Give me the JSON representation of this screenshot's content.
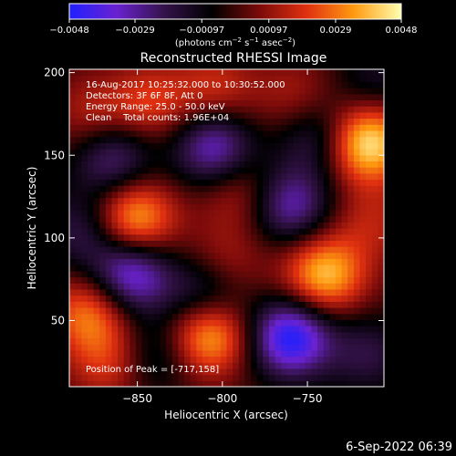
{
  "chart_data": {
    "type": "heatmap",
    "title": "Reconstructed RHESSI Image",
    "xlabel": "Heliocentric X (arcsec)",
    "ylabel": "Heliocentric Y (arcsec)",
    "x_ticks": [
      -850,
      -800,
      -750
    ],
    "x_tick_labels": [
      "−850",
      "−800",
      "−750"
    ],
    "y_ticks": [
      50,
      100,
      150,
      200
    ],
    "y_tick_labels": [
      "50",
      "100",
      "150",
      "200"
    ],
    "xlim": [
      -890,
      -705
    ],
    "ylim": [
      10,
      202
    ],
    "colorbar": {
      "range": [
        -0.0048,
        0.0048
      ],
      "ticks": [
        -0.0048,
        -0.0029,
        -0.00097,
        0.00097,
        0.0029,
        0.0048
      ],
      "tick_labels": [
        "−0.0048",
        "−0.0029",
        "−0.00097",
        "0.00097",
        "0.0029",
        "0.0048"
      ],
      "units_html": "(photons cm<tspan dy='-4' font-size='7'>−2</tspan><tspan dy='4'> s</tspan><tspan dy='-4' font-size='7'>−1</tspan><tspan dy='4'> asec</tspan><tspan dy='-4' font-size='7'>−2</tspan><tspan dy='4'>)</tspan>",
      "colors": [
        "#2020ff",
        "#6a22d0",
        "#34124a",
        "#000000",
        "#7a0a0a",
        "#e03010",
        "#ff9a10",
        "#ffffb0"
      ]
    },
    "info_lines": [
      "16-Aug-2017 10:25:32.000 to 10:30:52.000",
      "Detectors: 3F 6F 8F, Att 0",
      "Energy Range: 25.0 - 50.0 keV",
      "Clean    Total counts: 1.96E+04"
    ],
    "peak_label": "Position of Peak = [-717,158]",
    "blobs": [
      {
        "x": -715,
        "y": 158,
        "w": 0.0048
      },
      {
        "x": -852,
        "y": 112,
        "w": 0.004
      },
      {
        "x": -740,
        "y": 78,
        "w": 0.004
      },
      {
        "x": -808,
        "y": 42,
        "w": 0.0042
      },
      {
        "x": -878,
        "y": 55,
        "w": 0.003
      },
      {
        "x": -842,
        "y": 182,
        "w": 0.002
      },
      {
        "x": -876,
        "y": 175,
        "w": 0.0015
      },
      {
        "x": -757,
        "y": 185,
        "w": 0.0014
      },
      {
        "x": -712,
        "y": 110,
        "w": 0.0014
      },
      {
        "x": -804,
        "y": 190,
        "w": 0.0018
      },
      {
        "x": -790,
        "y": 128,
        "w": 0.0016
      },
      {
        "x": -866,
        "y": 25,
        "w": 0.002
      },
      {
        "x": -798,
        "y": 85,
        "w": 0.0014
      },
      {
        "x": -760,
        "y": 40,
        "w": -0.0048
      },
      {
        "x": -854,
        "y": 78,
        "w": -0.004
      },
      {
        "x": -864,
        "y": 148,
        "w": -0.0028
      },
      {
        "x": -805,
        "y": 155,
        "w": -0.0035
      },
      {
        "x": -760,
        "y": 120,
        "w": -0.0032
      },
      {
        "x": -810,
        "y": 65,
        "w": -0.0026
      },
      {
        "x": -744,
        "y": 162,
        "w": -0.0022
      },
      {
        "x": -840,
        "y": 30,
        "w": -0.0018
      },
      {
        "x": -882,
        "y": 105,
        "w": -0.002
      },
      {
        "x": -715,
        "y": 30,
        "w": -0.0018
      },
      {
        "x": -710,
        "y": 195,
        "w": -0.0014
      }
    ]
  },
  "footer": {
    "timestamp": "6-Sep-2022 06:39"
  }
}
